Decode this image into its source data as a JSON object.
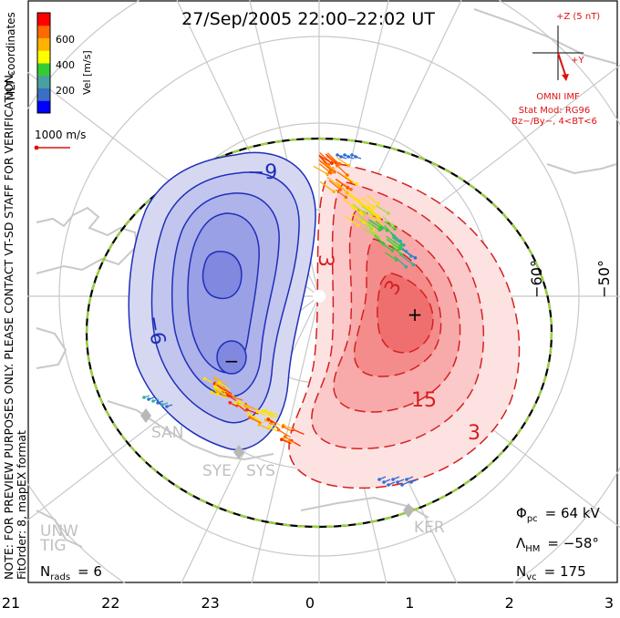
{
  "title": "27/Sep/2005 22:00–22:02 UT",
  "side_note": "NOTE: FOR PREVIEW PURPOSES ONLY. PLEASE CONTACT VT-SD STAFF FOR VERIFICATION.",
  "fit_info": "FitOrder: 8, mapEX format",
  "coords_label": "MLT coordinates",
  "colorbar": {
    "label": "Vel [m/s]",
    "ticks": [
      "200",
      "400",
      "600"
    ],
    "colors": [
      "#0000ff",
      "#3b6fc4",
      "#4aa0a0",
      "#33cc33",
      "#ffff00",
      "#ffb300",
      "#ff6a00",
      "#ff0000"
    ]
  },
  "ref_vector_label": "1000 m/s",
  "imf": {
    "bz_label": "+Z (5 nT)",
    "by_label": "+Y",
    "source": "OMNI IMF",
    "model": "Stat Mod: RG96",
    "bin": "Bz−/By−, 4<BT<6"
  },
  "stats": {
    "phi_label": "Φ",
    "phi_sub": "pc",
    "phi_value": "= 64 kV",
    "lambda_label": "Λ",
    "lambda_sub": "HM",
    "lambda_value": "= −58°",
    "nvc_label": "N",
    "nvc_sub": "vc",
    "nvc_value": "= 175",
    "nrads_label": "N",
    "nrads_sub": "rads",
    "nrads_value": "= 6"
  },
  "radars": [
    "SAN",
    "SYE",
    "SYS",
    "KER",
    "UNW",
    "TIG"
  ],
  "latitude_labels": [
    "−60°",
    "−50°"
  ],
  "chart_data": {
    "type": "contour",
    "x_axis_label": "",
    "x_ticks": [
      "21",
      "22",
      "23",
      "0",
      "1",
      "2",
      "3"
    ],
    "negative_cell": {
      "contours_kV": [
        -9,
        -6
      ],
      "extremum_marker": "−"
    },
    "positive_cell": {
      "contours_kV": [
        3,
        3,
        15,
        3
      ],
      "extremum_marker": "+"
    },
    "contour_labels": [
      "−9",
      "−6",
      "3",
      "3",
      "15",
      "3"
    ],
    "heppner_maynard_boundary_deg": -58
  }
}
